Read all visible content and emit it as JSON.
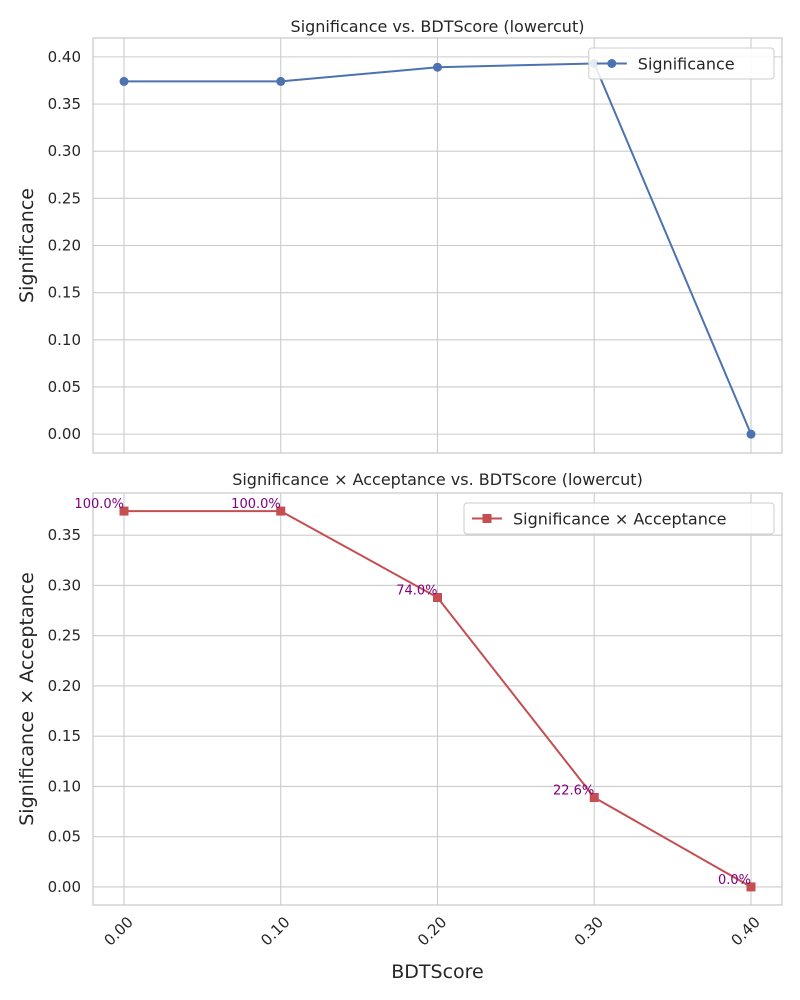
{
  "colors": {
    "series_1": "#4c72b0",
    "series_2": "#c44e52",
    "annotation": "#800080",
    "grid": "#cccccc"
  },
  "chart_data": [
    {
      "type": "line",
      "title": "Significance vs. BDTScore (lowercut)",
      "xlabel": "",
      "ylabel": "Significance",
      "x": [
        0.0,
        0.1,
        0.2,
        0.3,
        0.4
      ],
      "xticks": [
        "0.00",
        "0.10",
        "0.20",
        "0.30",
        "0.40"
      ],
      "yticks": [
        "0.00",
        "0.05",
        "0.10",
        "0.15",
        "0.20",
        "0.25",
        "0.30",
        "0.35",
        "0.40"
      ],
      "ylim": [
        -0.02,
        0.42
      ],
      "series": [
        {
          "name": "Significance",
          "marker": "circle",
          "color": "#4c72b0",
          "values": [
            0.374,
            0.374,
            0.389,
            0.393,
            0.0
          ]
        }
      ],
      "legend": "top-right",
      "grid": true
    },
    {
      "type": "line",
      "title": "Significance × Acceptance vs. BDTScore (lowercut)",
      "xlabel": "BDTScore",
      "ylabel": "Significance × Acceptance",
      "x": [
        0.0,
        0.1,
        0.2,
        0.3,
        0.4
      ],
      "xticks": [
        "0.00",
        "0.10",
        "0.20",
        "0.30",
        "0.40"
      ],
      "yticks": [
        "0.00",
        "0.05",
        "0.10",
        "0.15",
        "0.20",
        "0.25",
        "0.30",
        "0.35"
      ],
      "ylim": [
        -0.018,
        0.392
      ],
      "series": [
        {
          "name": "Significance × Acceptance",
          "marker": "square",
          "color": "#c44e52",
          "values": [
            0.374,
            0.374,
            0.288,
            0.089,
            0.0
          ]
        }
      ],
      "annotations": [
        "100.0%",
        "100.0%",
        "74.0%",
        "22.6%",
        "0.0%"
      ],
      "legend": "top-right",
      "grid": true
    }
  ]
}
